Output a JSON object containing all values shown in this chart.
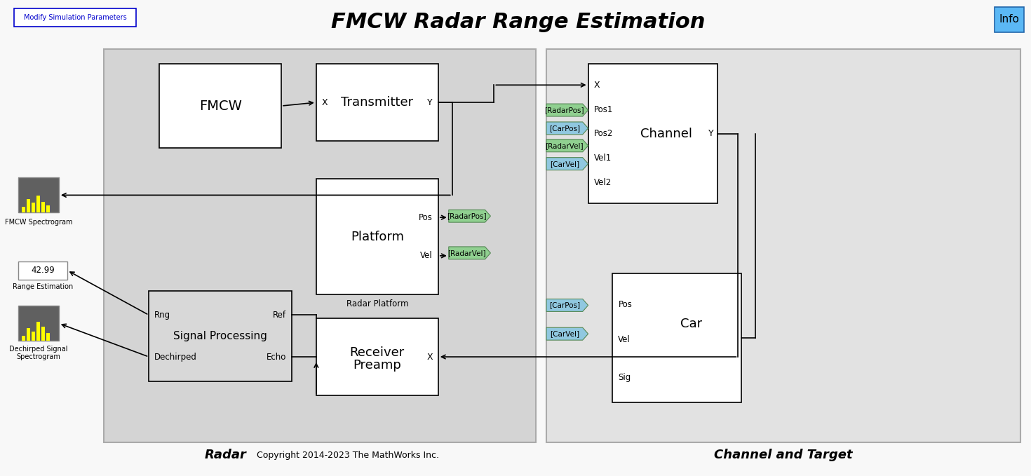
{
  "title": "FMCW Radar Range Estimation",
  "title_fontsize": 22,
  "title_fontstyle": "bold italic",
  "bg_color": "#f0f0f0",
  "white": "#ffffff",
  "modify_btn_text": "Modify Simulation Parameters",
  "modify_btn_color": "#0000cc",
  "modify_btn_bg": "#ffffff",
  "info_btn_text": "Info",
  "info_btn_color": "#5bb8f5",
  "radar_label": "Radar",
  "channel_label": "Channel and Target",
  "copyright": "Copyright 2014-2023 The MathWorks Inc.",
  "radar_bg": "#d8d8d8",
  "channel_bg": "#e0e0e0",
  "block_bg": "#ffffff",
  "block_border": "#000000",
  "signal_tag_green": "#90d090",
  "signal_tag_blue": "#90c8e0",
  "arrow_color": "#000000",
  "spectrogram_bg": "#404040",
  "spectrogram_bar": "#ffff00"
}
